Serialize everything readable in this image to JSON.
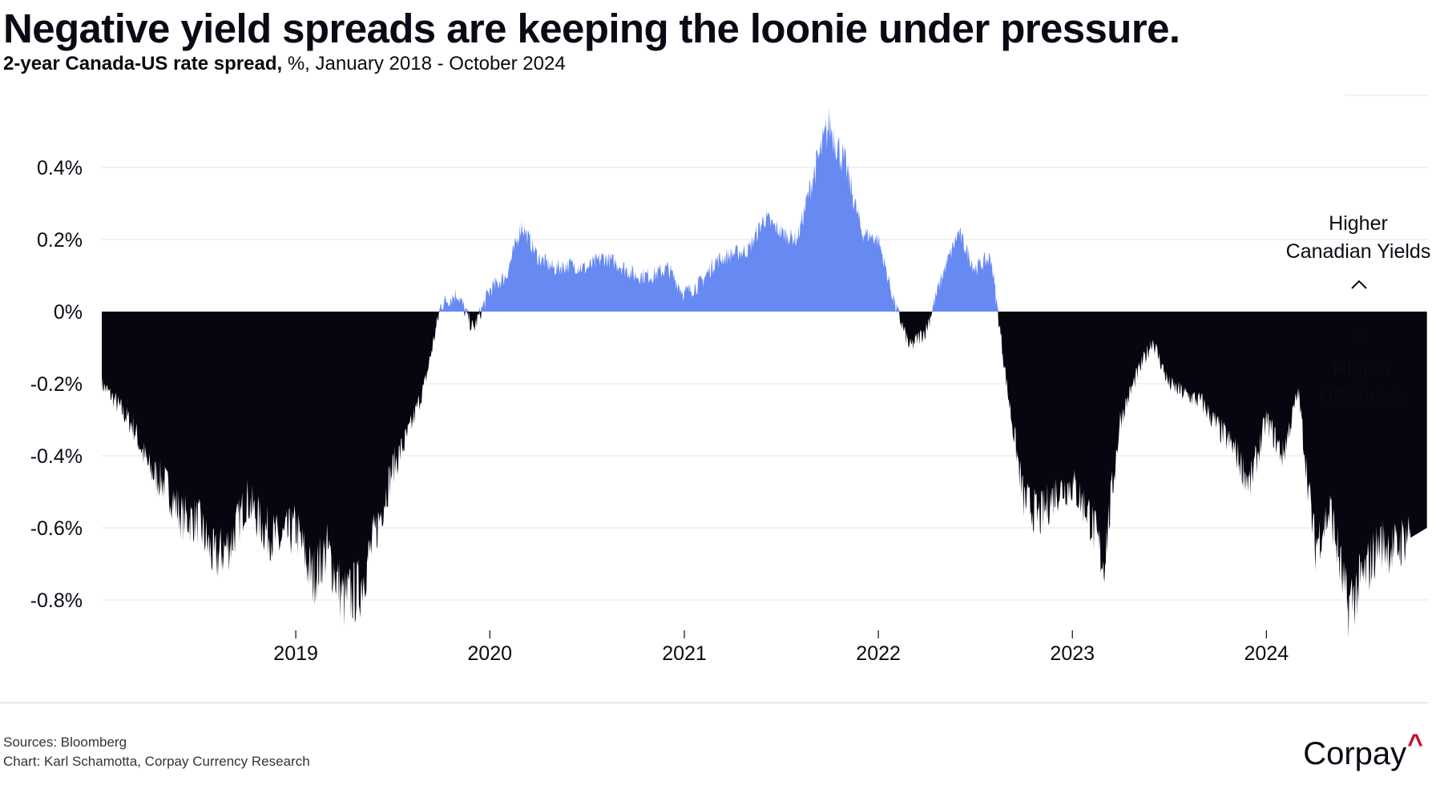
{
  "title": "Negative yield spreads are keeping the loonie under pressure.",
  "subtitle": {
    "bold": "2-year Canada-US rate spread,",
    "rest": " %, January 2018 - October 2024"
  },
  "annotations": {
    "up_line1": "Higher",
    "up_line2": "Canadian Yields",
    "down_line1": "Higher",
    "down_line2": "US Yields"
  },
  "footer": {
    "sources": "Sources: Bloomberg",
    "credit": "Chart: Karl Schamotta, Corpay Currency Research"
  },
  "logo": {
    "text": "Corpay",
    "mark": "^"
  },
  "colors": {
    "positive": "#6789f2",
    "negative": "#07050f",
    "grid": "#e6e6e6"
  },
  "chart_data": {
    "type": "area",
    "title": "",
    "xlabel": "",
    "ylabel": "",
    "x_range": [
      "2018-01-01",
      "2024-10-31"
    ],
    "ylim": [
      -0.9,
      0.6
    ],
    "y_ticks": [
      0.4,
      0.2,
      0,
      -0.2,
      -0.4,
      -0.6,
      -0.8
    ],
    "y_tick_labels": [
      "0.4%",
      "0.2%",
      "0%",
      "-0.2%",
      "-0.4%",
      "-0.6%",
      "-0.8%"
    ],
    "x_ticks": [
      "2019-01-01",
      "2020-01-01",
      "2021-01-01",
      "2022-01-01",
      "2023-01-01",
      "2024-01-01"
    ],
    "x_tick_labels": [
      "2019",
      "2020",
      "2021",
      "2022",
      "2023",
      "2024"
    ],
    "grid": true,
    "series": [
      {
        "x": [
          "2018-01-01",
          "2018-02-01",
          "2018-03-01",
          "2018-04-01",
          "2018-05-01",
          "2018-06-01",
          "2018-07-01",
          "2018-08-01",
          "2018-09-01",
          "2018-10-01",
          "2018-11-01",
          "2018-12-01",
          "2019-01-01",
          "2019-02-01",
          "2019-03-01",
          "2019-04-01",
          "2019-05-01",
          "2019-06-01",
          "2019-07-01",
          "2019-08-01",
          "2019-09-01",
          "2019-10-01",
          "2019-11-01",
          "2019-12-01",
          "2020-01-01",
          "2020-02-01",
          "2020-03-01",
          "2020-04-01",
          "2020-05-01",
          "2020-06-01",
          "2020-07-01",
          "2020-08-01",
          "2020-09-01",
          "2020-10-01",
          "2020-11-01",
          "2020-12-01",
          "2021-01-01",
          "2021-02-01",
          "2021-03-01",
          "2021-04-01",
          "2021-05-01",
          "2021-06-01",
          "2021-07-01",
          "2021-08-01",
          "2021-09-01",
          "2021-10-01",
          "2021-11-01",
          "2021-12-01",
          "2022-01-01",
          "2022-02-01",
          "2022-03-01",
          "2022-04-01",
          "2022-05-01",
          "2022-06-01",
          "2022-07-01",
          "2022-08-01",
          "2022-09-01",
          "2022-10-01",
          "2022-11-01",
          "2022-12-01",
          "2023-01-01",
          "2023-02-01",
          "2023-03-01",
          "2023-04-01",
          "2023-05-01",
          "2023-06-01",
          "2023-07-01",
          "2023-08-01",
          "2023-09-01",
          "2023-10-01",
          "2023-11-01",
          "2023-12-01",
          "2024-01-01",
          "2024-02-01",
          "2024-03-01",
          "2024-04-01",
          "2024-05-01",
          "2024-06-01",
          "2024-07-01",
          "2024-08-01",
          "2024-09-01",
          "2024-10-01"
        ],
        "values": [
          -0.2,
          -0.26,
          -0.32,
          -0.44,
          -0.48,
          -0.57,
          -0.58,
          -0.69,
          -0.64,
          -0.52,
          -0.6,
          -0.64,
          -0.6,
          -0.74,
          -0.66,
          -0.8,
          -0.77,
          -0.61,
          -0.44,
          -0.34,
          -0.2,
          0.02,
          0.05,
          -0.05,
          0.06,
          0.1,
          0.24,
          0.15,
          0.12,
          0.13,
          0.12,
          0.15,
          0.13,
          0.1,
          0.1,
          0.12,
          0.05,
          0.08,
          0.14,
          0.16,
          0.17,
          0.26,
          0.22,
          0.2,
          0.38,
          0.52,
          0.4,
          0.22,
          0.2,
          0.02,
          -0.1,
          -0.05,
          0.1,
          0.22,
          0.12,
          0.15,
          -0.22,
          -0.52,
          -0.57,
          -0.5,
          -0.48,
          -0.56,
          -0.7,
          -0.3,
          -0.18,
          -0.08,
          -0.2,
          -0.23,
          -0.25,
          -0.32,
          -0.38,
          -0.48,
          -0.3,
          -0.4,
          -0.22,
          -0.65,
          -0.55,
          -0.82,
          -0.74,
          -0.64,
          -0.66,
          -0.6
        ]
      }
    ]
  }
}
